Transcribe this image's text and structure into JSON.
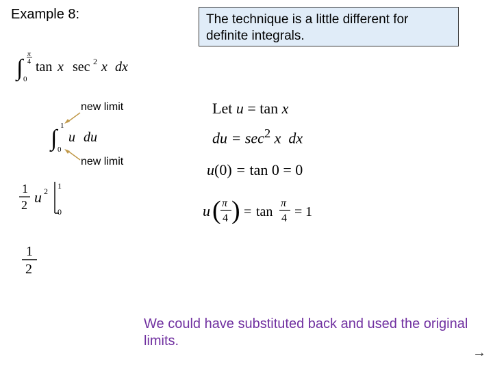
{
  "title": "Example 8:",
  "callout": "The technique is a little different for definite integrals.",
  "labels": {
    "new_limit_1": "new limit",
    "new_limit_2": "new limit"
  },
  "math": {
    "let_u_html": "Let <i>u</i> = tan <i>x</i>",
    "du_html": "du = sec<sup style='font-style:normal'>2</sup> x&nbsp; dx",
    "u0_html": "u<span style='font-style:normal'>(0)</span> = <span style='font-style:normal'>tan 0 = 0</span>"
  },
  "bottom_note": "We could have substituted back and used the original limits.",
  "colors": {
    "callout_bg": "#e0ecf8",
    "note_color": "#7030a0",
    "arrow_color": "#c09848"
  },
  "arrow_symbol": "→"
}
